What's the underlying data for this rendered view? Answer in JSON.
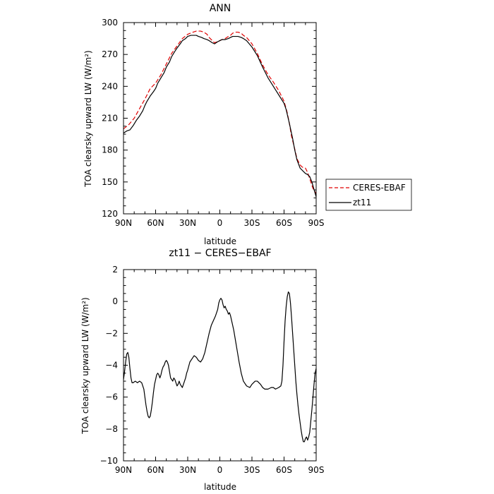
{
  "chart_data": [
    {
      "type": "line",
      "title": "ANN",
      "xlabel": "latitude",
      "ylabel": "TOA clearsky upward LW (W/m²)",
      "xlim": [
        90,
        -90
      ],
      "ylim": [
        120,
        300
      ],
      "x_ticks": [
        90,
        60,
        30,
        0,
        -30,
        -60,
        -90
      ],
      "x_tick_labels": [
        "90N",
        "60N",
        "30N",
        "0",
        "30S",
        "60S",
        "90S"
      ],
      "y_ticks": [
        120,
        150,
        180,
        210,
        240,
        270,
        300
      ],
      "y_tick_labels": [
        "120",
        "150",
        "180",
        "210",
        "240",
        "270",
        "300"
      ],
      "legend": "right-outside",
      "series": [
        {
          "name": "CERES-EBAF",
          "color": "#e00000",
          "dash": "dashed",
          "x": [
            90,
            85,
            80,
            75,
            70,
            65,
            60,
            55,
            50,
            45,
            40,
            35,
            30,
            25,
            22,
            20,
            18,
            15,
            12,
            10,
            7,
            5,
            2,
            0,
            -2,
            -5,
            -8,
            -10,
            -12,
            -15,
            -17,
            -20,
            -22,
            -25,
            -30,
            -35,
            -40,
            -45,
            -50,
            -55,
            -60,
            -63,
            -65,
            -67,
            -70,
            -72,
            -75,
            -77,
            -80,
            -82,
            -85,
            -87,
            -90
          ],
          "y": [
            200,
            204,
            210,
            219,
            228,
            238,
            243,
            251,
            261,
            271,
            278,
            285,
            289,
            291,
            292,
            292,
            292,
            291,
            289,
            286,
            283,
            281,
            282,
            283,
            284,
            285,
            287,
            288,
            290,
            291,
            291,
            290,
            288,
            286,
            280,
            271,
            260,
            251,
            244,
            236,
            226,
            215,
            205,
            193,
            181,
            172,
            166,
            164,
            163,
            159,
            150,
            144,
            139
          ]
        },
        {
          "name": "zt11",
          "color": "#000000",
          "dash": "solid",
          "x": [
            90,
            87,
            84,
            81,
            78,
            75,
            72,
            70,
            68,
            65,
            62,
            60,
            58,
            55,
            52,
            50,
            47,
            45,
            42,
            40,
            37,
            35,
            32,
            30,
            27,
            25,
            22,
            20,
            17,
            15,
            12,
            10,
            7,
            5,
            2,
            0,
            -2,
            -5,
            -8,
            -10,
            -12,
            -15,
            -17,
            -20,
            -22,
            -25,
            -30,
            -35,
            -40,
            -45,
            -50,
            -55,
            -60,
            -62,
            -65,
            -68,
            -70,
            -72,
            -75,
            -78,
            -80,
            -82,
            -84,
            -86,
            -88,
            -90
          ],
          "y": [
            196,
            198,
            199,
            203,
            208,
            212,
            217,
            222,
            226,
            231,
            235,
            238,
            243,
            248,
            253,
            258,
            263,
            268,
            273,
            276,
            280,
            283,
            285,
            287,
            288,
            288,
            288,
            287,
            286,
            285,
            284,
            283,
            281,
            280,
            282,
            283,
            284,
            284,
            285,
            286,
            287,
            287,
            287,
            286,
            285,
            283,
            277,
            269,
            258,
            248,
            240,
            232,
            224,
            218,
            205,
            191,
            180,
            171,
            163,
            160,
            158,
            157,
            155,
            150,
            143,
            136
          ]
        }
      ]
    },
    {
      "type": "line",
      "title": "zt11 − CERES−EBAF",
      "xlabel": "latitude",
      "ylabel": "TOA clearsky upward LW (W/m²)",
      "xlim": [
        90,
        -90
      ],
      "ylim": [
        -10,
        2
      ],
      "x_ticks": [
        90,
        60,
        30,
        0,
        -30,
        -60,
        -90
      ],
      "x_tick_labels": [
        "90N",
        "60N",
        "30N",
        "0",
        "30S",
        "60S",
        "90S"
      ],
      "y_ticks": [
        -10,
        -8,
        -6,
        -4,
        -2,
        0,
        2
      ],
      "y_tick_labels": [
        "−10",
        "−8",
        "−6",
        "−4",
        "−2",
        "0",
        "2"
      ],
      "series": [
        {
          "color": "#000000",
          "x": [
            90,
            89,
            88,
            87,
            86,
            85,
            84,
            83,
            82,
            81,
            79,
            77,
            75,
            73,
            71,
            70,
            69,
            68,
            67,
            66,
            65,
            64,
            63,
            62,
            61,
            60,
            59,
            58,
            57,
            56,
            55,
            54,
            53,
            52,
            51,
            50,
            49,
            48,
            47,
            46,
            45,
            44,
            43,
            42,
            41,
            40,
            39,
            38,
            37,
            36,
            35,
            34,
            33,
            32,
            31,
            30,
            28,
            26,
            24,
            22,
            20,
            18,
            16,
            14,
            12,
            10,
            8,
            6,
            4,
            2,
            1,
            0,
            -1,
            -2,
            -3,
            -4,
            -5,
            -6,
            -7,
            -8,
            -9,
            -10,
            -11,
            -12,
            -13,
            -14,
            -15,
            -16,
            -17,
            -18,
            -20,
            -22,
            -25,
            -28,
            -30,
            -33,
            -35,
            -38,
            -40,
            -42,
            -45,
            -48,
            -50,
            -52,
            -55,
            -57,
            -58,
            -59,
            -60,
            -61,
            -62,
            -63,
            -64,
            -65,
            -66,
            -67,
            -68,
            -69,
            -70,
            -71,
            -72,
            -73,
            -74,
            -75,
            -76,
            -77,
            -78,
            -79,
            -80,
            -81,
            -82,
            -83,
            -84,
            -85,
            -86,
            -87,
            -88,
            -89,
            -90
          ],
          "y": [
            -4.9,
            -4.4,
            -3.8,
            -3.3,
            -3.2,
            -3.5,
            -4.2,
            -4.8,
            -5.1,
            -5.1,
            -5.0,
            -5.1,
            -5.0,
            -5.1,
            -5.5,
            -6.0,
            -6.5,
            -6.9,
            -7.2,
            -7.3,
            -7.2,
            -6.8,
            -6.3,
            -5.7,
            -5.2,
            -4.9,
            -4.6,
            -4.5,
            -4.6,
            -4.8,
            -4.6,
            -4.3,
            -4.1,
            -4.0,
            -3.8,
            -3.7,
            -3.8,
            -4.0,
            -4.4,
            -4.8,
            -4.9,
            -5.0,
            -4.8,
            -4.9,
            -5.1,
            -5.3,
            -5.2,
            -5.0,
            -5.2,
            -5.3,
            -5.4,
            -5.2,
            -5.0,
            -4.8,
            -4.5,
            -4.3,
            -3.8,
            -3.6,
            -3.4,
            -3.5,
            -3.7,
            -3.8,
            -3.6,
            -3.2,
            -2.6,
            -2.0,
            -1.5,
            -1.2,
            -0.9,
            -0.5,
            -0.1,
            0.1,
            0.2,
            0.1,
            -0.2,
            -0.4,
            -0.3,
            -0.5,
            -0.6,
            -0.8,
            -0.7,
            -0.9,
            -1.2,
            -1.5,
            -1.8,
            -2.2,
            -2.6,
            -3.0,
            -3.4,
            -3.8,
            -4.5,
            -5.0,
            -5.3,
            -5.4,
            -5.2,
            -5.0,
            -5.0,
            -5.2,
            -5.4,
            -5.5,
            -5.5,
            -5.4,
            -5.4,
            -5.5,
            -5.4,
            -5.3,
            -5.0,
            -4.0,
            -2.5,
            -1.2,
            -0.3,
            0.3,
            0.6,
            0.5,
            -0.1,
            -1.0,
            -2.0,
            -3.0,
            -4.0,
            -5.0,
            -5.8,
            -6.5,
            -7.1,
            -7.6,
            -8.1,
            -8.5,
            -8.8,
            -8.8,
            -8.6,
            -8.5,
            -8.7,
            -8.5,
            -8.2,
            -7.5,
            -6.8,
            -6.0,
            -5.2,
            -4.5,
            -4.2
          ]
        }
      ]
    }
  ]
}
